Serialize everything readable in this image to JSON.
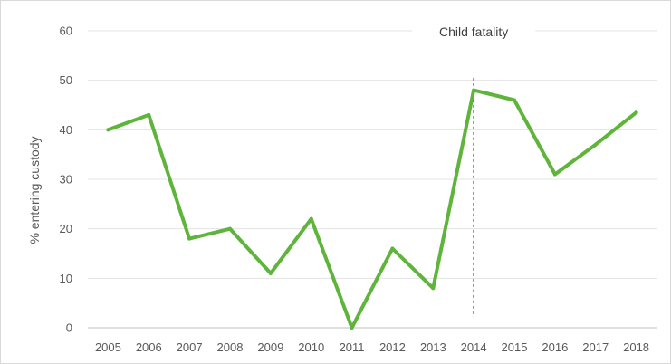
{
  "chart_data": {
    "type": "line",
    "title": "",
    "xlabel": "",
    "ylabel": "% entering custody",
    "ylim": [
      0,
      60
    ],
    "yticks": [
      0,
      10,
      20,
      30,
      40,
      50,
      60
    ],
    "grid": true,
    "legend": "none",
    "x": [
      "2005",
      "2006",
      "2007",
      "2008",
      "2009",
      "2010",
      "2011",
      "2012",
      "2013",
      "2014",
      "2015",
      "2016",
      "2017",
      "2018"
    ],
    "series": [
      {
        "values": [
          40,
          43,
          18,
          20,
          11,
          22,
          0,
          16,
          8,
          48,
          46,
          31,
          37,
          43.5
        ],
        "color": "#5fb43c"
      }
    ],
    "annotations": [
      {
        "text": "Child fatality",
        "x": "2014",
        "style": "dashed-vertical-line"
      }
    ]
  }
}
